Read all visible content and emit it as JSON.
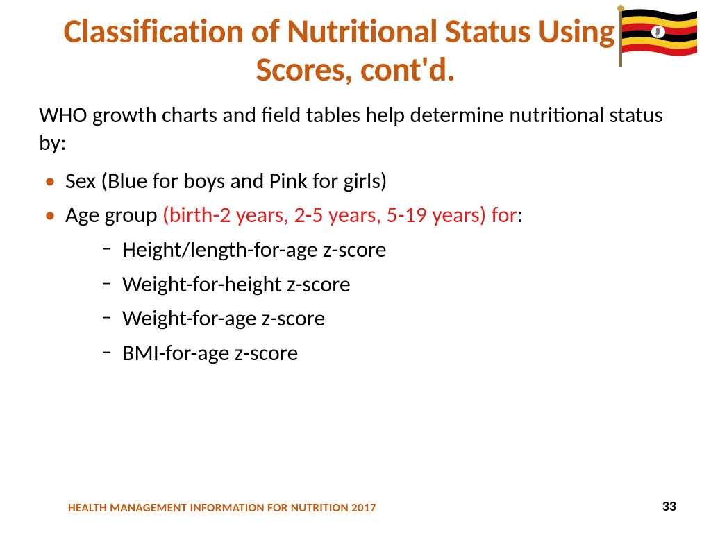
{
  "colors": {
    "title": "#c55a11",
    "body": "#000000",
    "highlight": "#e01f1f",
    "footer": "#c55a11",
    "bullet": "#c55a11"
  },
  "title": "Classification of Nutritional Status Using Z-Scores, cont'd.",
  "intro": "WHO growth charts and field tables help determine nutritional status by:",
  "bullets": [
    {
      "text": "Sex (Blue for boys and Pink for girls)",
      "highlight": false
    },
    {
      "prefix": "Age group ",
      "highlighted": "(birth-2 years, 2-5 years, 5-19 years) for",
      "suffix": ":"
    }
  ],
  "sub_bullets": [
    "Height/length-for-age z-score",
    "Weight-for-height z-score",
    "Weight-for-age z-score",
    "BMI-for-age z-score"
  ],
  "footer_left": "HEALTH MANAGEMENT INFORMATION FOR NUTRITION 2017",
  "page_number": "33",
  "flag": {
    "stripes": [
      "#000000",
      "#f9ca24",
      "#d7141a",
      "#000000",
      "#f9ca24",
      "#d7141a"
    ],
    "center_circle": "#ffffff",
    "bird_body": "#808080",
    "bird_beak": "#d7141a",
    "pole": "#8b6f47",
    "finial": "#c9a24a"
  }
}
